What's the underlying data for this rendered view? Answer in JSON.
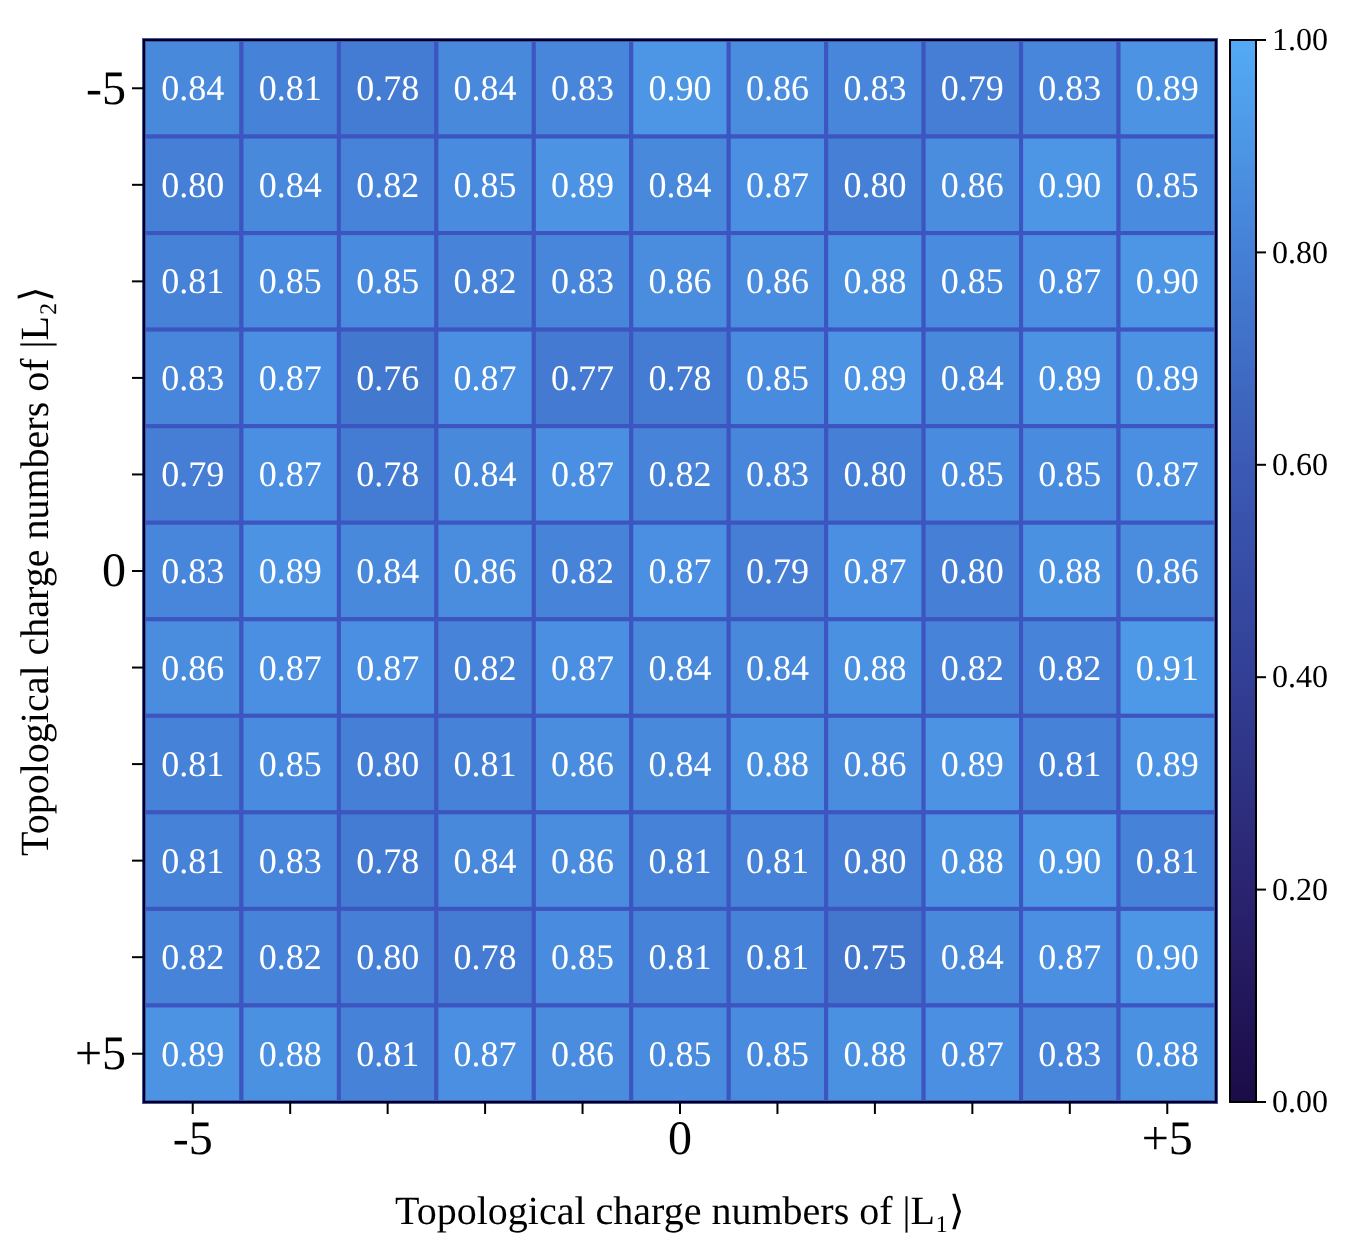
{
  "chart_data": {
    "type": "heatmap",
    "xlabel": "Topological charge numbers of |L₁⟩",
    "ylabel": "Topological charge numbers of |L₂⟩",
    "categories": [
      "-5",
      null,
      null,
      null,
      null,
      "0",
      null,
      null,
      null,
      null,
      "+5"
    ],
    "y_categories": [
      "-5",
      null,
      null,
      null,
      null,
      "0",
      null,
      null,
      null,
      null,
      "+5"
    ],
    "cells": [
      [
        0.84,
        0.81,
        0.78,
        0.84,
        0.83,
        0.9,
        0.86,
        0.83,
        0.79,
        0.83,
        0.89
      ],
      [
        0.8,
        0.84,
        0.82,
        0.85,
        0.89,
        0.84,
        0.87,
        0.8,
        0.86,
        0.9,
        0.85
      ],
      [
        0.81,
        0.85,
        0.85,
        0.82,
        0.83,
        0.86,
        0.86,
        0.88,
        0.85,
        0.87,
        0.9
      ],
      [
        0.83,
        0.87,
        0.76,
        0.87,
        0.77,
        0.78,
        0.85,
        0.89,
        0.84,
        0.89,
        0.89
      ],
      [
        0.79,
        0.87,
        0.78,
        0.84,
        0.87,
        0.82,
        0.83,
        0.8,
        0.85,
        0.85,
        0.87
      ],
      [
        0.83,
        0.89,
        0.84,
        0.86,
        0.82,
        0.87,
        0.79,
        0.87,
        0.8,
        0.88,
        0.86
      ],
      [
        0.86,
        0.87,
        0.87,
        0.82,
        0.87,
        0.84,
        0.84,
        0.88,
        0.82,
        0.82,
        0.91
      ],
      [
        0.81,
        0.85,
        0.8,
        0.81,
        0.86,
        0.84,
        0.88,
        0.86,
        0.89,
        0.81,
        0.89
      ],
      [
        0.81,
        0.83,
        0.78,
        0.84,
        0.86,
        0.81,
        0.81,
        0.8,
        0.88,
        0.9,
        0.81
      ],
      [
        0.82,
        0.82,
        0.8,
        0.78,
        0.85,
        0.81,
        0.81,
        0.75,
        0.84,
        0.87,
        0.9
      ],
      [
        0.89,
        0.88,
        0.81,
        0.87,
        0.86,
        0.85,
        0.85,
        0.88,
        0.87,
        0.83,
        0.88
      ]
    ],
    "data_labels": true,
    "cell_labels": [
      [
        "0.84",
        "0.81",
        "0.78",
        "0.84",
        "0.83",
        "0.90",
        "0.86",
        "0.83",
        "0.79",
        "0.83",
        "0.89"
      ],
      [
        "0.80",
        "0.84",
        "0.82",
        "0.85",
        "0.89",
        "0.84",
        "0.87",
        "0.80",
        "0.86",
        "0.90",
        "0.85"
      ],
      [
        "0.81",
        "0.85",
        "0.85",
        "0.82",
        "0.83",
        "0.86",
        "0.86",
        "0.88",
        "0.85",
        "0.87",
        "0.90"
      ],
      [
        "0.83",
        "0.87",
        "0.76",
        "0.87",
        "0.77",
        "0.78",
        "0.85",
        "0.89",
        "0.84",
        "0.89",
        "0.89"
      ],
      [
        "0.79",
        "0.87",
        "0.78",
        "0.84",
        "0.87",
        "0.82",
        "0.83",
        "0.80",
        "0.85",
        "0.85",
        "0.87"
      ],
      [
        "0.83",
        "0.89",
        "0.84",
        "0.86",
        "0.82",
        "0.87",
        "0.79",
        "0.87",
        "0.80",
        "0.88",
        "0.86"
      ],
      [
        "0.86",
        "0.87",
        "0.87",
        "0.82",
        "0.87",
        "0.84",
        "0.84",
        "0.88",
        "0.82",
        "0.82",
        "0.91"
      ],
      [
        "0.81",
        "0.85",
        "0.80",
        "0.81",
        "0.86",
        "0.84",
        "0.88",
        "0.86",
        "0.89",
        "0.81",
        "0.89"
      ],
      [
        "0.81",
        "0.83",
        "0.78",
        "0.84",
        "0.86",
        "0.81",
        "0.81",
        "0.80",
        "0.88",
        "0.90",
        "0.81"
      ],
      [
        "0.82",
        "0.82",
        "0.80",
        "0.78",
        "0.85",
        "0.81",
        "0.81",
        "0.75",
        "0.84",
        "0.87",
        "0.90"
      ],
      [
        "0.89",
        "0.88",
        "0.81",
        "0.87",
        "0.86",
        "0.85",
        "0.85",
        "0.88",
        "0.87",
        "0.83",
        "0.88"
      ]
    ],
    "clim": [
      0,
      1
    ],
    "cticks": [
      {
        "value": 0,
        "label": "0.00"
      },
      {
        "value": 0.2,
        "label": "0.20"
      },
      {
        "value": 0.4,
        "label": "0.40"
      },
      {
        "value": 0.6,
        "label": "0.60"
      },
      {
        "value": 0.8,
        "label": "0.80"
      },
      {
        "value": 1,
        "label": "1.00"
      }
    ]
  }
}
